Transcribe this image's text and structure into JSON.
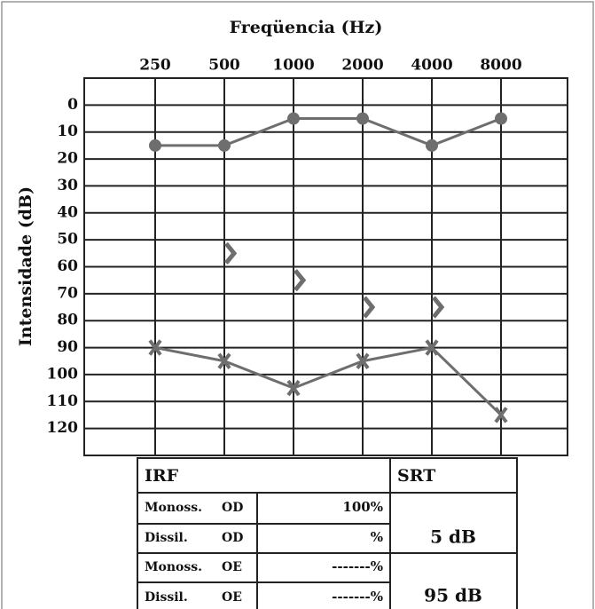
{
  "chart_data": {
    "type": "audiogram",
    "title": "Freqüencia (Hz)",
    "y_label": "Intensidade (dB)",
    "categories": [
      "250",
      "500",
      "1000",
      "2000",
      "4000",
      "8000"
    ],
    "ylim": [
      -10,
      130
    ],
    "yticks": [
      0,
      10,
      20,
      30,
      40,
      50,
      60,
      70,
      80,
      90,
      100,
      110,
      120
    ],
    "y_inverted": true,
    "grid": true,
    "series": [
      {
        "marker": "circle",
        "color": "#6e6e6e",
        "values": [
          15,
          15,
          5,
          5,
          15,
          5
        ]
      },
      {
        "marker": "cross",
        "color": "#6e6e6e",
        "values": [
          90,
          95,
          105,
          95,
          90,
          115
        ]
      },
      {
        "marker": "bracket",
        "color": "#6e6e6e",
        "values": [
          null,
          55,
          65,
          75,
          75,
          null
        ]
      }
    ]
  },
  "table": {
    "irf_header": "IRF",
    "srt_header": "SRT",
    "rows": [
      [
        "Monoss.",
        "OD",
        "100%"
      ],
      [
        "Dissil.",
        "OD",
        "%"
      ],
      [
        "Monoss.",
        "OE",
        "-------%"
      ],
      [
        "Dissil.",
        "OE",
        "-------%"
      ]
    ],
    "srt": [
      "5 dB",
      "95 dB"
    ]
  }
}
